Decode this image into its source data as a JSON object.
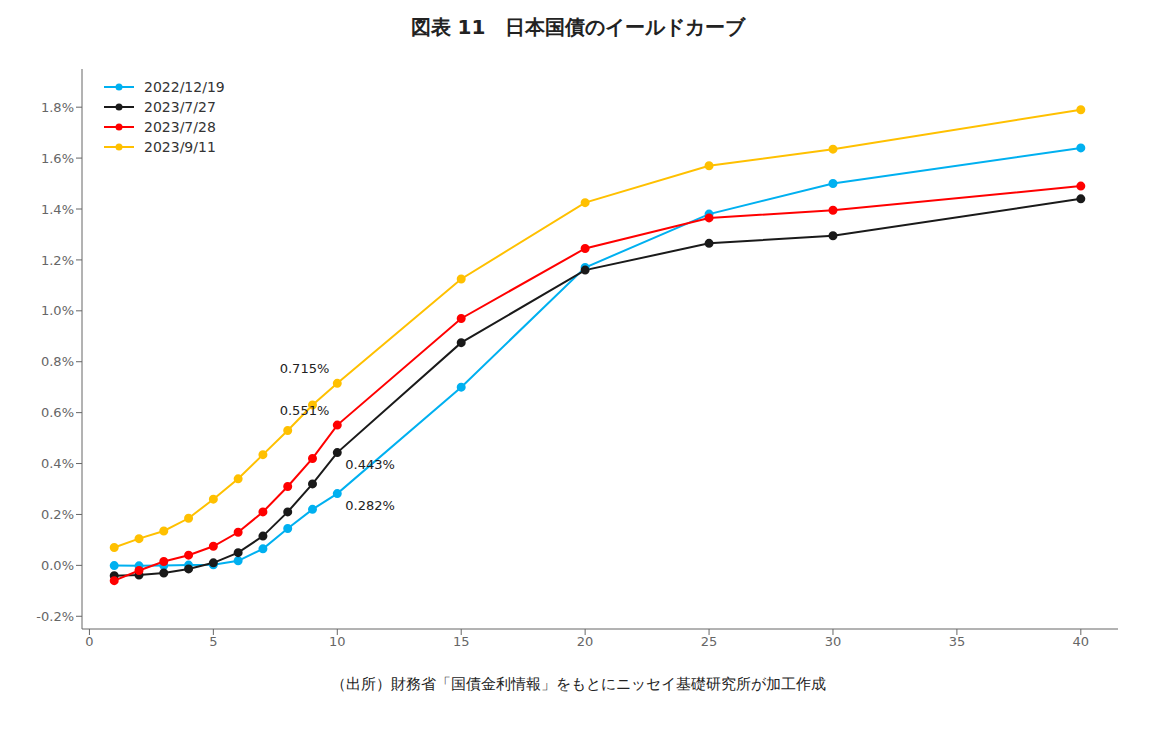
{
  "chart_data": {
    "type": "line",
    "title": "図表 11　日本国債のイールドカーブ",
    "subtitle": "（出所）財務省「国債金利情報」をもとにニッセイ基礎研究所が加工作成",
    "x": [
      1,
      2,
      3,
      4,
      5,
      6,
      7,
      8,
      9,
      10,
      15,
      20,
      25,
      30,
      40
    ],
    "series": [
      {
        "name": "2022/12/19",
        "color": "#00B0F0",
        "marker": "circle",
        "values": [
          -0.001,
          -0.002,
          -0.001,
          0.001,
          0.002,
          0.018,
          0.065,
          0.145,
          0.22,
          0.282,
          0.7,
          1.17,
          1.38,
          1.5,
          1.64
        ]
      },
      {
        "name": "2023/7/27",
        "color": "#1A1A1A",
        "marker": "circle",
        "values": [
          -0.041,
          -0.038,
          -0.03,
          -0.014,
          0.01,
          0.05,
          0.115,
          0.21,
          0.32,
          0.443,
          0.875,
          1.16,
          1.265,
          1.295,
          1.44
        ]
      },
      {
        "name": "2023/7/28",
        "color": "#FF0000",
        "marker": "circle",
        "values": [
          -0.06,
          -0.02,
          0.015,
          0.04,
          0.075,
          0.13,
          0.21,
          0.31,
          0.42,
          0.551,
          0.97,
          1.245,
          1.365,
          1.395,
          1.49
        ]
      },
      {
        "name": "2023/9/11",
        "color": "#FFC000",
        "marker": "circle",
        "values": [
          0.07,
          0.105,
          0.135,
          0.185,
          0.26,
          0.34,
          0.435,
          0.53,
          0.63,
          0.715,
          1.125,
          1.425,
          1.57,
          1.635,
          1.79
        ]
      }
    ],
    "annotations": [
      {
        "text": "0.715%",
        "x": 10,
        "y": 0.715
      },
      {
        "text": "0.551%",
        "x": 10,
        "y": 0.551
      },
      {
        "text": "0.443%",
        "x": 10,
        "y": 0.443
      },
      {
        "text": "0.282%",
        "x": 10,
        "y": 0.282
      }
    ],
    "xlim": [
      -0.3,
      41.5
    ],
    "xticks": [
      0,
      5,
      10,
      15,
      20,
      25,
      30,
      35,
      40
    ],
    "ylim": [
      -0.25,
      1.95
    ],
    "yticks": [
      {
        "value": -0.2,
        "label": "-0.2%"
      },
      {
        "value": 0.0,
        "label": "0.0%"
      },
      {
        "value": 0.2,
        "label": "0.2%"
      },
      {
        "value": 0.4,
        "label": "0.4%"
      },
      {
        "value": 0.6,
        "label": "0.6%"
      },
      {
        "value": 0.8,
        "label": "0.8%"
      },
      {
        "value": 1.0,
        "label": "1.0%"
      },
      {
        "value": 1.2,
        "label": "1.2%"
      },
      {
        "value": 1.4,
        "label": "1.4%"
      },
      {
        "value": 1.6,
        "label": "1.6%"
      },
      {
        "value": 1.8,
        "label": "1.8%"
      }
    ],
    "grid": false,
    "legend": "upper left"
  }
}
